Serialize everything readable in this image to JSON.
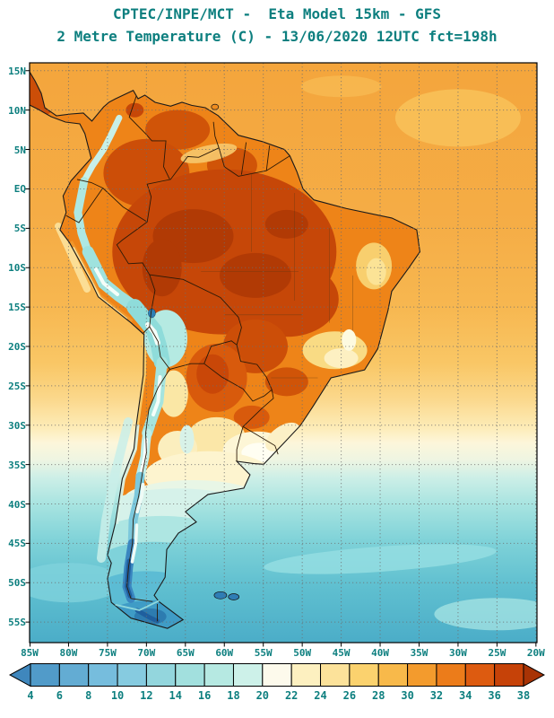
{
  "header": {
    "line1": "CPTEC/INPE/MCT -  Eta Model 15km - GFS",
    "line2": "2 Metre Temperature (C) - 13/06/2020 12UTC fct=198h",
    "text_color": "#0d7f7f"
  },
  "axes": {
    "lat_ticks": [
      "15N",
      "10N",
      "5N",
      "EQ",
      "5S",
      "10S",
      "15S",
      "20S",
      "25S",
      "30S",
      "35S",
      "40S",
      "45S",
      "50S",
      "55S"
    ],
    "lon_ticks": [
      "85W",
      "80W",
      "75W",
      "70W",
      "65W",
      "60W",
      "55W",
      "50W",
      "45W",
      "40W",
      "35W",
      "30W",
      "25W",
      "20W"
    ]
  },
  "colorbar": {
    "tick_labels": [
      "4",
      "6",
      "8",
      "10",
      "12",
      "14",
      "16",
      "18",
      "20",
      "22",
      "24",
      "26",
      "28",
      "30",
      "32",
      "34",
      "36",
      "38"
    ],
    "cell_colors": [
      "#3f87bd",
      "#519bc9",
      "#63acd3",
      "#76bddd",
      "#86cbe0",
      "#93d6dd",
      "#a2e0de",
      "#b6e9e2",
      "#cdf1e9",
      "#fdfaec",
      "#fdf0c0",
      "#fce29a",
      "#fbd26e",
      "#f8b94a",
      "#f39b2d",
      "#ec7c1a",
      "#dd5b10",
      "#c64208",
      "#a83305"
    ]
  }
}
